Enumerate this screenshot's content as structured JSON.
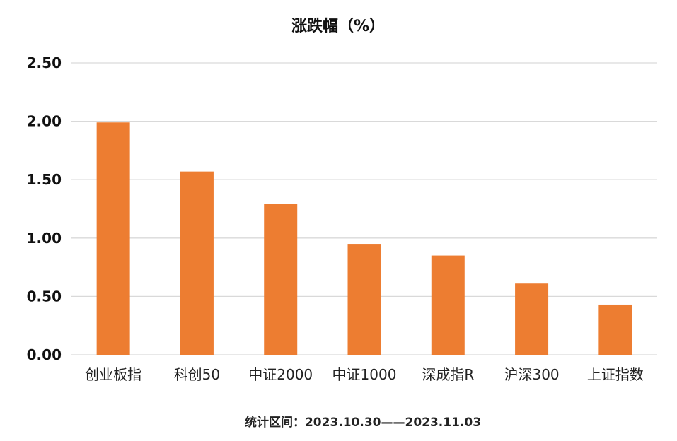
{
  "chart_data": {
    "type": "bar",
    "title": "涨跌幅（%）",
    "categories": [
      "创业板指",
      "科创50",
      "中证2000",
      "中证1000",
      "深成指R",
      "沪深300",
      "上证指数"
    ],
    "values": [
      1.99,
      1.57,
      1.29,
      0.95,
      0.85,
      0.61,
      0.43
    ],
    "ylim": [
      0,
      2.5
    ],
    "yticks": [
      "0.00",
      "0.50",
      "1.00",
      "1.50",
      "2.00",
      "2.50"
    ],
    "bar_color": "#ED7D31",
    "grid": true,
    "legend": "none",
    "footnote": "统计区间：2023.10.30——2023.11.03"
  }
}
